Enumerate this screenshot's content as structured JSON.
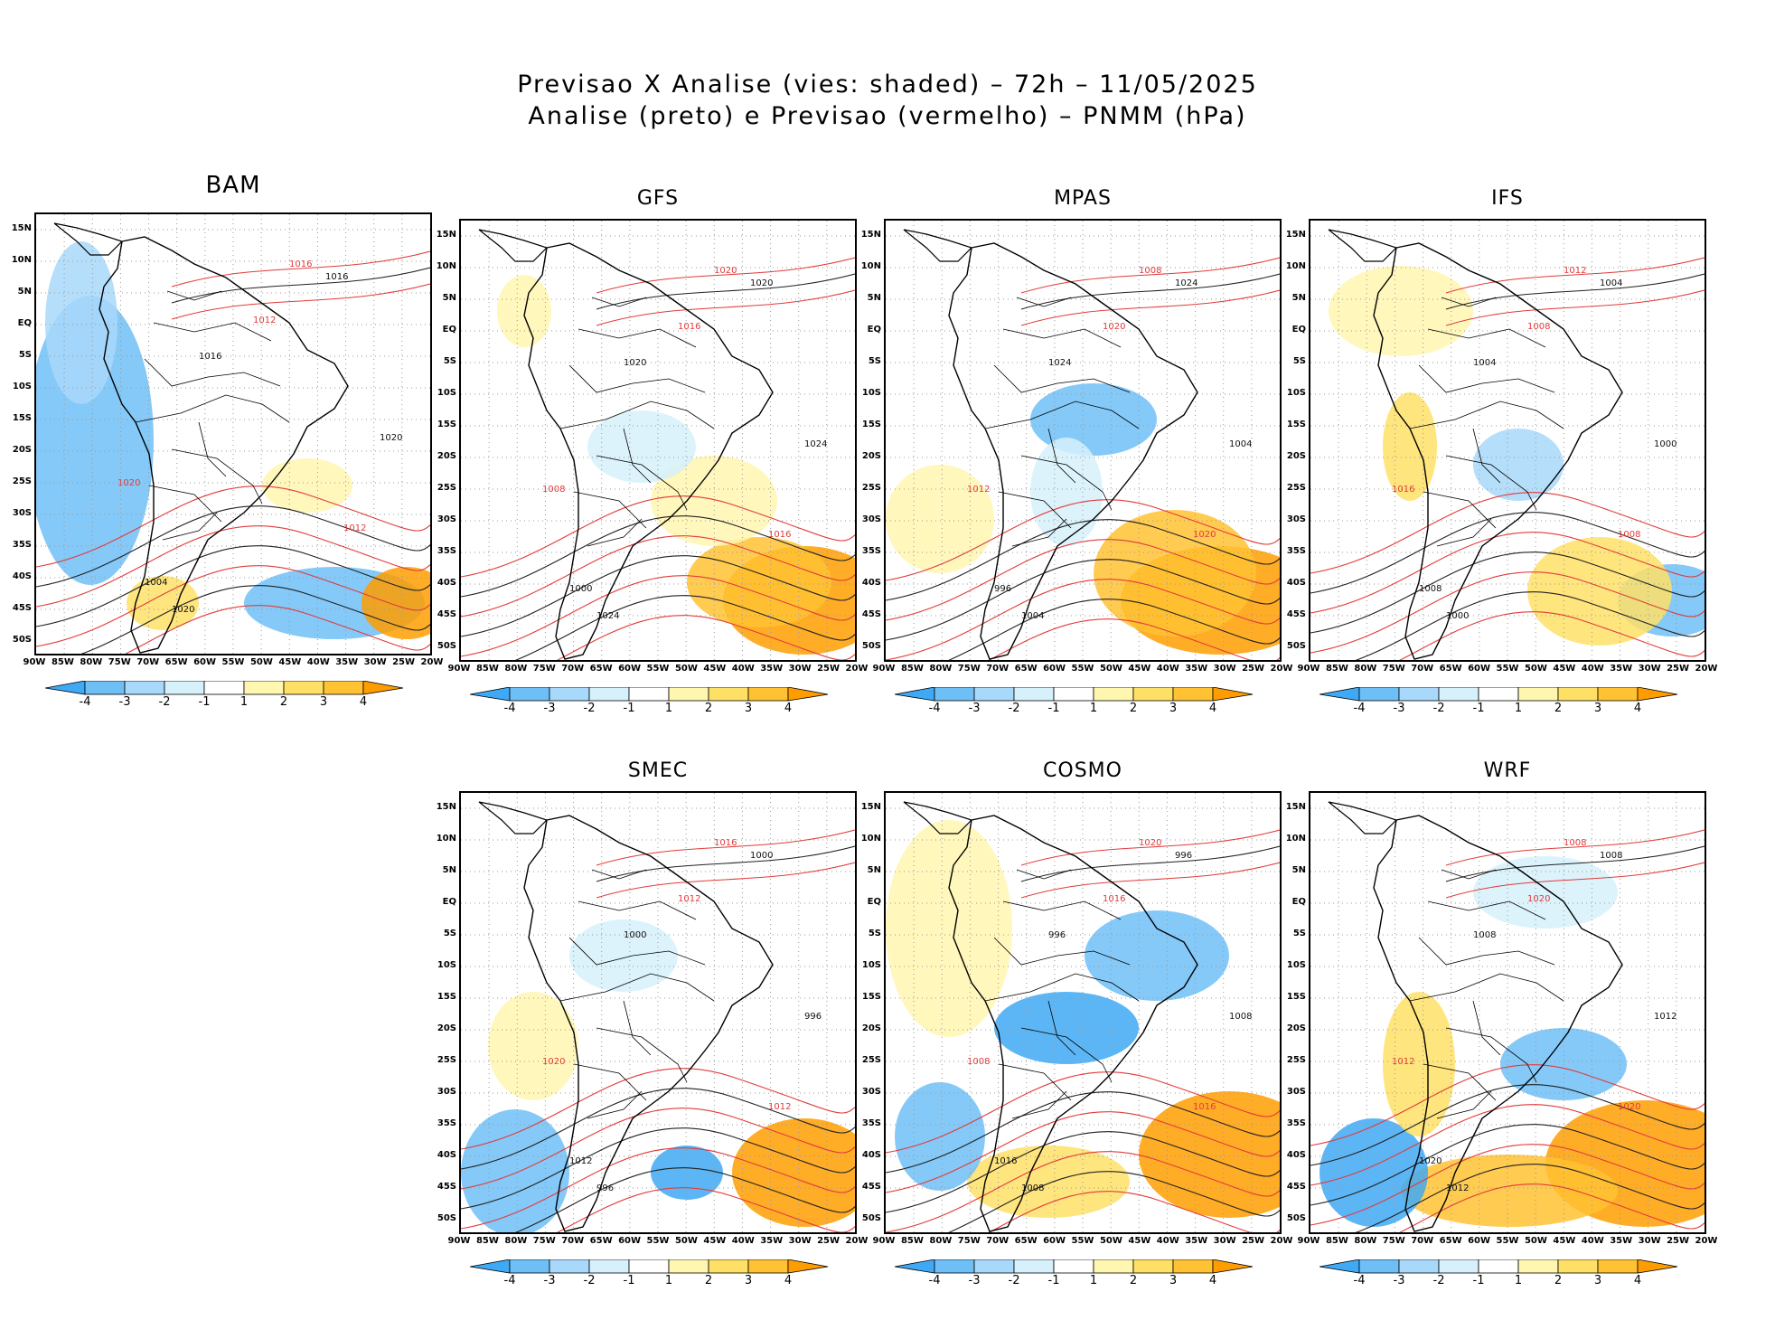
{
  "header": {
    "line1": "Previsao X Analise (vies: shaded) – 72h – 11/05/2025",
    "line2": "Analise (preto) e Previsao (vermelho) – PNMM (hPa)"
  },
  "panels": [
    {
      "name": "BAM"
    },
    {
      "name": "GFS"
    },
    {
      "name": "MPAS"
    },
    {
      "name": "IFS"
    },
    {
      "name": "SMEC"
    },
    {
      "name": "COSMO"
    },
    {
      "name": "WRF"
    }
  ],
  "lat_labels": [
    "15N",
    "10N",
    "5N",
    "EQ",
    "5S",
    "10S",
    "15S",
    "20S",
    "25S",
    "30S",
    "35S",
    "40S",
    "45S",
    "50S"
  ],
  "lon_labels": [
    "90W",
    "85W",
    "80W",
    "75W",
    "70W",
    "65W",
    "60W",
    "55W",
    "50W",
    "45W",
    "40W",
    "35W",
    "30W",
    "25W",
    "20W"
  ],
  "colorbar": {
    "ticks": [
      "-4",
      "-3",
      "-2",
      "-1",
      "1",
      "2",
      "3",
      "4"
    ],
    "colors": [
      "#3fa9f5",
      "#6fbff7",
      "#a8d8fa",
      "#d6f1fc",
      "#ffffff",
      "#fff6b0",
      "#ffe066",
      "#ffc233",
      "#ff9d00"
    ]
  },
  "contour_labels": {
    "black": [
      "1008",
      "1012",
      "1016",
      "1020",
      "1024",
      "1004",
      "1000",
      "996"
    ],
    "red": [
      "1008",
      "1012",
      "1016",
      "1020"
    ]
  }
}
